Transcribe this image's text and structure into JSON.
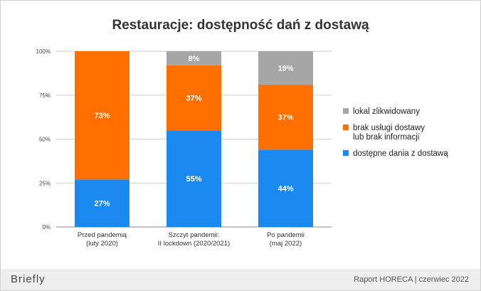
{
  "chart_data": {
    "type": "bar",
    "stacked": true,
    "title": "Restauracje: dostępność dań z dostawą",
    "categories": [
      [
        "Przed pandemią",
        "(luty 2020)"
      ],
      [
        "Szczyt pandemii:",
        "II lockdown (2020/2021)"
      ],
      [
        "Po pandemii",
        "(maj 2022)"
      ]
    ],
    "series": [
      {
        "name": "dostępne dania z dostawą",
        "color": "#1a8af0",
        "values": [
          27,
          55,
          44
        ],
        "labels": [
          "27%",
          "55%",
          "44%"
        ]
      },
      {
        "name": [
          "brak usługi dostawy",
          "lub brak informacji"
        ],
        "color": "#ff6f00",
        "values": [
          73,
          37,
          37
        ],
        "labels": [
          "73%",
          "37%",
          "37%"
        ]
      },
      {
        "name": "lokal zlikwidowany",
        "color": "#a6a6a6",
        "values": [
          0,
          8,
          19
        ],
        "labels": [
          "",
          "8%",
          "19%"
        ]
      }
    ],
    "legend_order": [
      2,
      1,
      0
    ],
    "legend_position": "right",
    "yticks": [
      "0%",
      "25%",
      "50%",
      "75%",
      "100%"
    ],
    "ylim": [
      0,
      100
    ],
    "grid": true
  },
  "footer": {
    "brand": "Briefly",
    "report": "Raport HORECA | czerwiec 2022"
  }
}
